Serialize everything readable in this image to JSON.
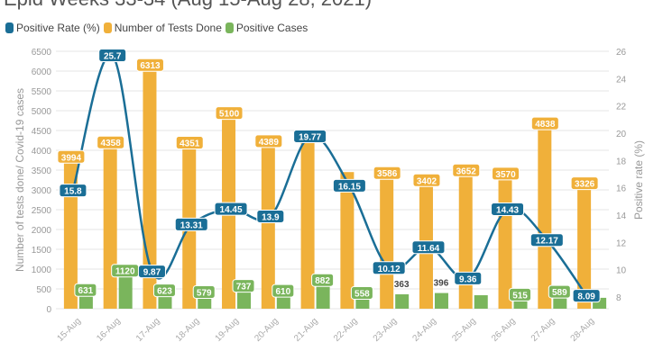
{
  "chart_data": {
    "type": "bar",
    "title": "Epid Weeks 33-34 (Aug 15-Aug 28, 2021)",
    "categories": [
      "15-Aug",
      "16-Aug",
      "17-Aug",
      "18-Aug",
      "19-Aug",
      "20-Aug",
      "21-Aug",
      "22-Aug",
      "23-Aug",
      "24-Aug",
      "25-Aug",
      "26-Aug",
      "27-Aug",
      "28-Aug"
    ],
    "series": [
      {
        "name": "Positive Rate (%)",
        "type": "line",
        "axis": "right",
        "color": "#1a6e96",
        "values": [
          15.8,
          25.7,
          9.87,
          13.31,
          14.45,
          13.9,
          19.77,
          16.15,
          10.12,
          11.64,
          9.36,
          14.43,
          12.17,
          8.09
        ]
      },
      {
        "name": "Number of Tests Done",
        "type": "bar",
        "axis": "left",
        "color": "#f0b03a",
        "values": [
          3994,
          4358,
          6313,
          4351,
          5100,
          4389,
          4400,
          3450,
          3586,
          3402,
          3652,
          3570,
          4838,
          3326
        ],
        "labels": [
          "3994",
          "4358",
          "6313",
          "4351",
          "5100",
          "4389",
          "",
          "",
          "3586",
          "3402",
          "3652",
          "3570",
          "4838",
          "3326"
        ]
      },
      {
        "name": "Positive Cases",
        "type": "bar",
        "axis": "left",
        "color": "#7ab55c",
        "values": [
          631,
          1120,
          623,
          579,
          737,
          610,
          882,
          558,
          363,
          396,
          340,
          515,
          589,
          275
        ],
        "labels": [
          "631",
          "1120",
          "623",
          "579",
          "737",
          "610",
          "882",
          "558",
          "363",
          "396",
          "",
          "515",
          "589",
          ""
        ]
      }
    ],
    "ylabel": "Number of tests done/ Covid-19 cases",
    "y2label": "Positive rate (%)",
    "ylim": [
      0,
      6500
    ],
    "y2lim": [
      7.14,
      26
    ],
    "yticks": [
      "0",
      "500",
      "1000",
      "1500",
      "2000",
      "2500",
      "3000",
      "3500",
      "4000",
      "4500",
      "5000",
      "5500",
      "6000",
      "6500"
    ],
    "y2ticks": [
      "8",
      "10",
      "12",
      "14",
      "16",
      "18",
      "20",
      "22",
      "24",
      "26"
    ],
    "grid": true,
    "legend": "top-left"
  }
}
